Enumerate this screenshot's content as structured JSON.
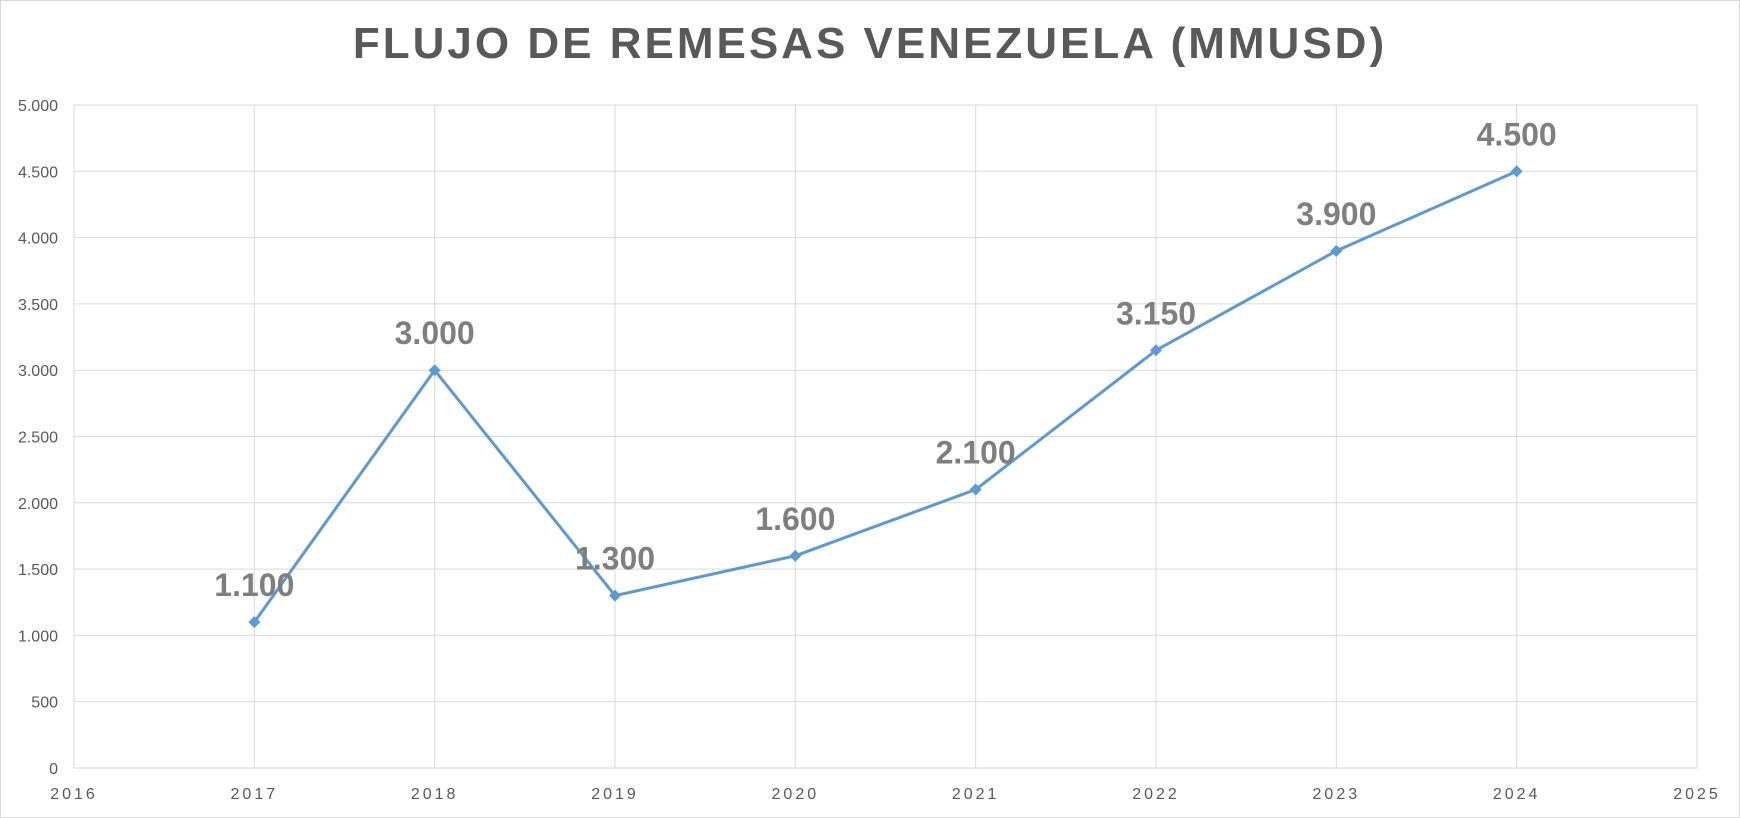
{
  "chart_data": {
    "type": "scatter",
    "title": "FLUJO DE REMESAS VENEZUELA (MMUSD)",
    "xlabel": "",
    "ylabel": "",
    "xlim": [
      2016,
      2025
    ],
    "ylim": [
      0,
      5000
    ],
    "x_ticks": [
      2016,
      2017,
      2018,
      2019,
      2020,
      2021,
      2022,
      2023,
      2024,
      2025
    ],
    "y_ticks": [
      0,
      500,
      1000,
      1500,
      2000,
      2500,
      3000,
      3500,
      4000,
      4500,
      5000
    ],
    "x_tick_labels": [
      "2016",
      "2017",
      "2018",
      "2019",
      "2020",
      "2021",
      "2022",
      "2023",
      "2024",
      "2025"
    ],
    "y_tick_labels": [
      "0",
      "500",
      "1.000",
      "1.500",
      "2.000",
      "2.500",
      "3.000",
      "3.500",
      "4.000",
      "4.500",
      "5.000"
    ],
    "grid": true,
    "series": [
      {
        "x": [
          2017,
          2018,
          2019,
          2020,
          2021,
          2022,
          2023,
          2024
        ],
        "y": [
          1100,
          3000,
          1300,
          1600,
          2100,
          3150,
          3900,
          4500
        ],
        "data_labels": [
          "1.100",
          "3.000",
          "1.300",
          "1.600",
          "2.100",
          "3.150",
          "3.900",
          "4.500"
        ],
        "color": "#5B9BD5",
        "marker": "diamond",
        "lines": true
      }
    ],
    "colors": {
      "grid": "#d9d9d9",
      "axis_text": "#595959",
      "data_label": "#7f7f7f"
    }
  }
}
